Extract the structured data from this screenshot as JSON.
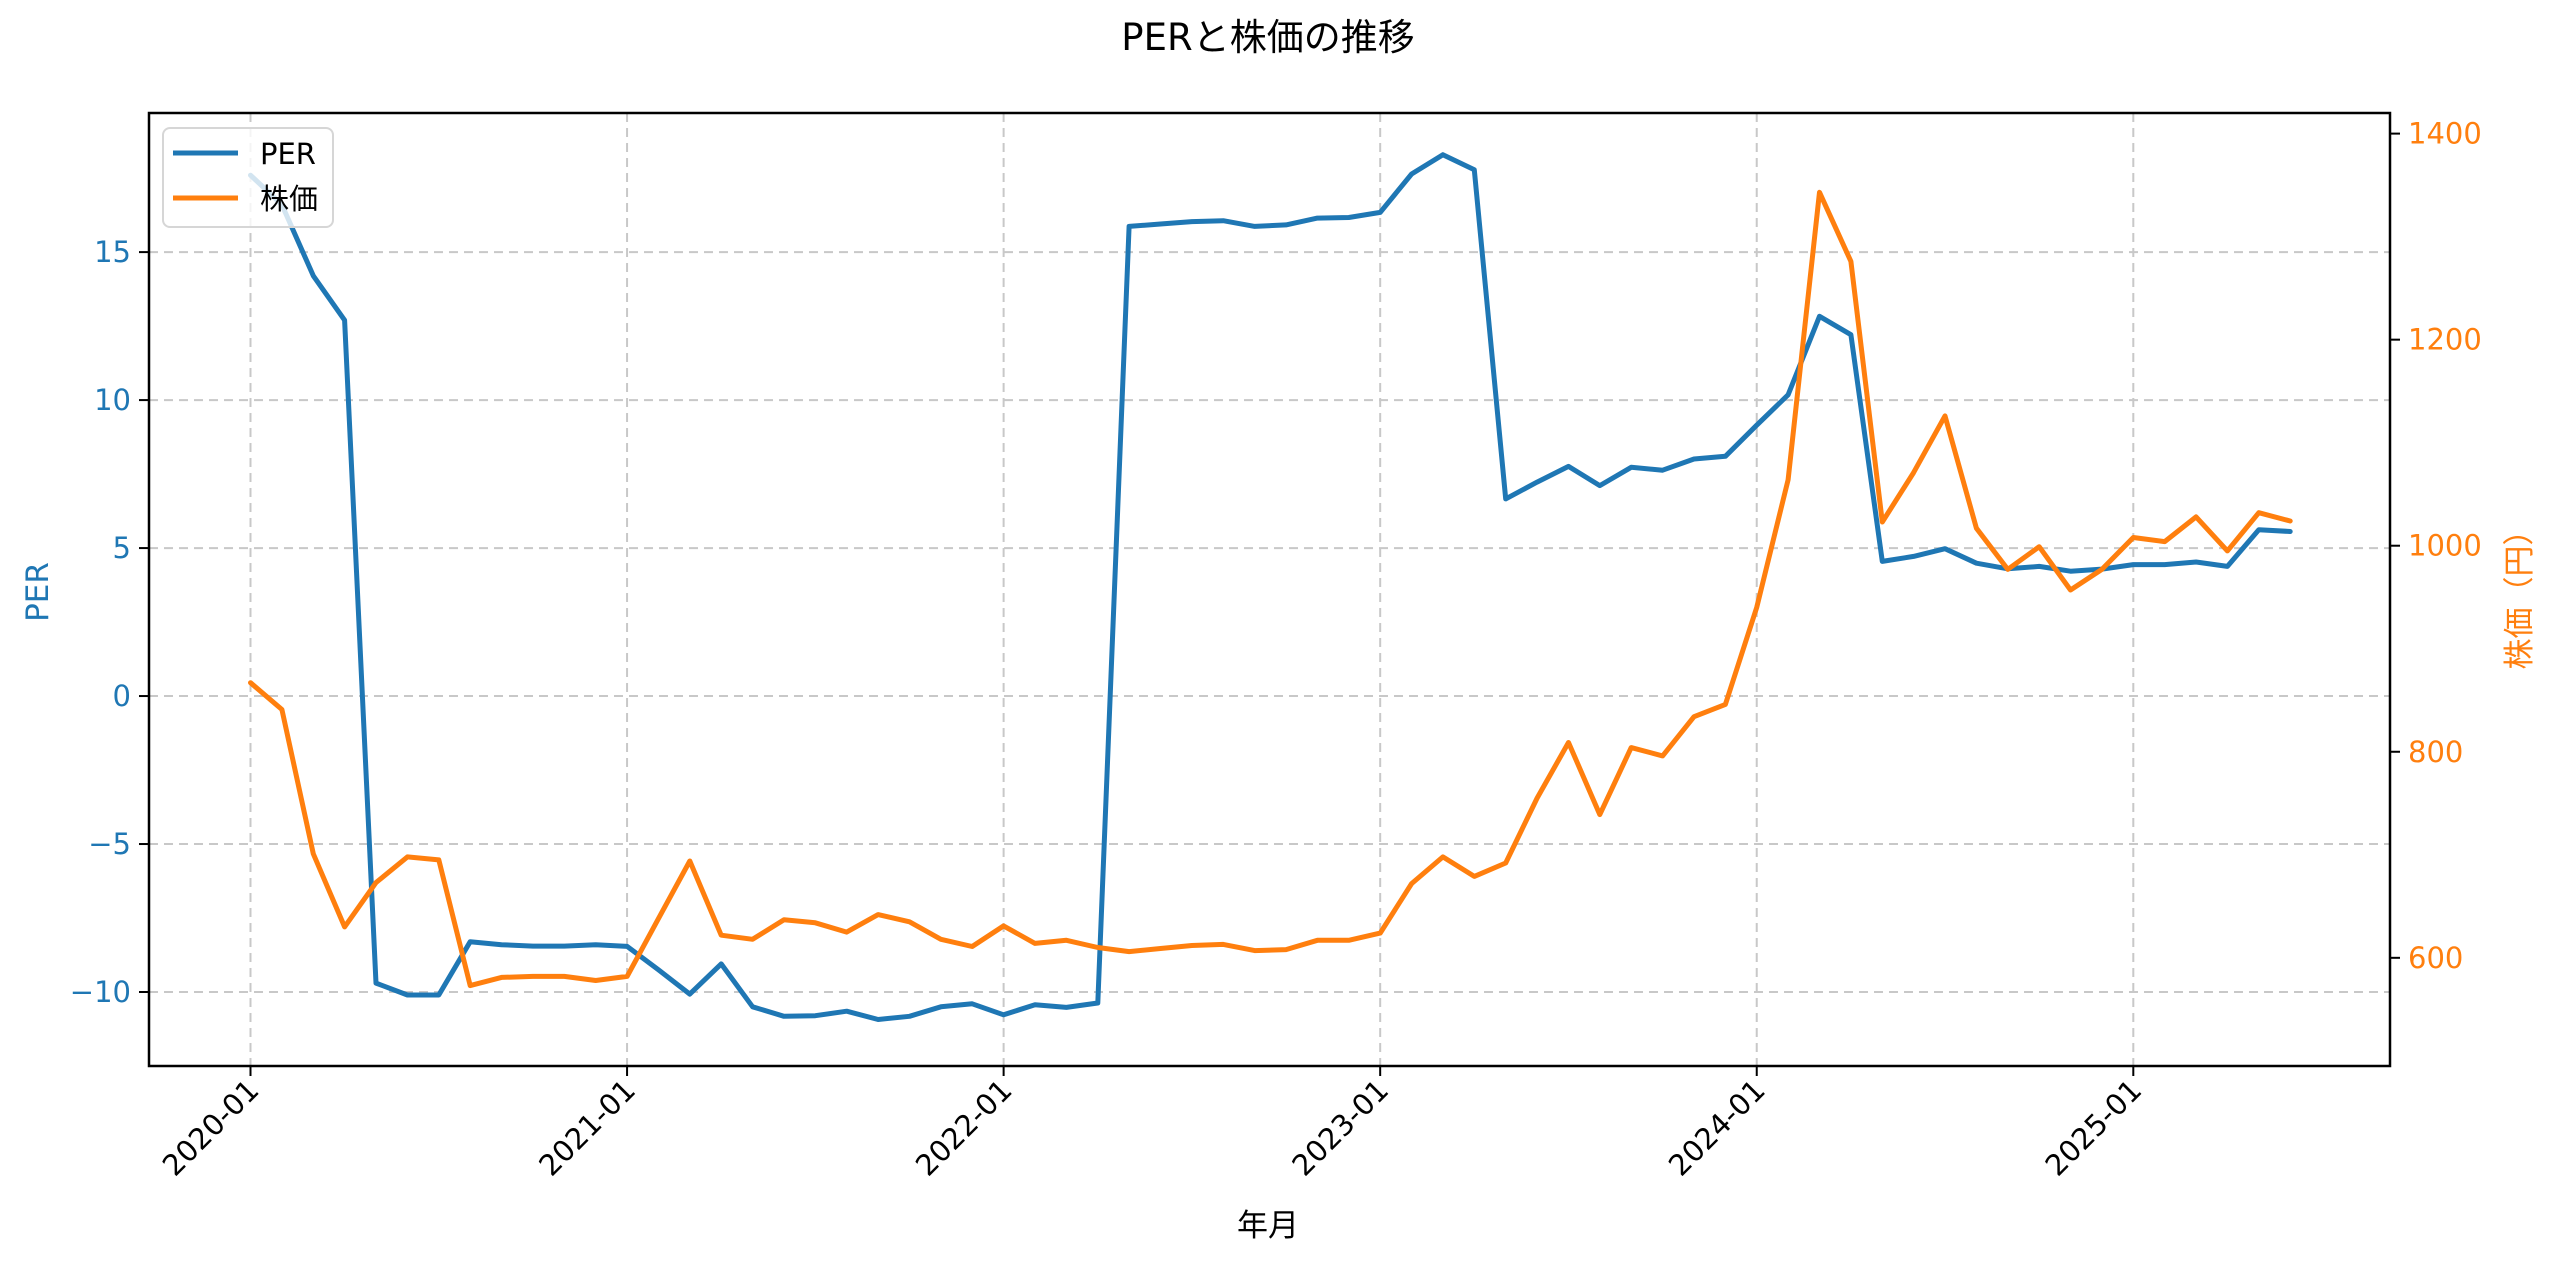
{
  "figure": {
    "title": "PERと株価の推移",
    "xlabel": "年月",
    "ylabel_left": "PER",
    "ylabel_right": "株価（円）",
    "legend": [
      {
        "label": "PER",
        "color": "#1f77b4"
      },
      {
        "label": "株価",
        "color": "#ff7f0e"
      }
    ],
    "colors": {
      "per": "#1f77b4",
      "price": "#ff7f0e",
      "grid": "#c8c8c8",
      "axis": "#000000"
    }
  },
  "chart_data": {
    "type": "line",
    "title": "PERと株価の推移",
    "xlabel": "年月",
    "ylabel": "PER",
    "ylabel_right": "株価（円）",
    "grid": true,
    "legend_position": "upper left",
    "x_tick_labels": [
      "2020-01",
      "2021-01",
      "2022-01",
      "2023-01",
      "2024-01",
      "2025-01"
    ],
    "y_left_ticks": [
      -10,
      -5,
      0,
      5,
      10,
      15
    ],
    "y_right_ticks": [
      600,
      800,
      1000,
      1200,
      1400
    ],
    "ylim_left": [
      -12.5,
      19.7
    ],
    "ylim_right": [
      495,
      1420
    ],
    "x": [
      "2020-01",
      "2020-02",
      "2020-03",
      "2020-04",
      "2020-05",
      "2020-06",
      "2020-07",
      "2020-08",
      "2020-09",
      "2020-10",
      "2020-11",
      "2020-12",
      "2021-01",
      "2021-02",
      "2021-03",
      "2021-04",
      "2021-05",
      "2021-06",
      "2021-07",
      "2021-08",
      "2021-09",
      "2021-10",
      "2021-11",
      "2021-12",
      "2022-01",
      "2022-02",
      "2022-03",
      "2022-04",
      "2022-05",
      "2022-06",
      "2022-07",
      "2022-08",
      "2022-09",
      "2022-10",
      "2022-11",
      "2022-12",
      "2023-01",
      "2023-02",
      "2023-03",
      "2023-04",
      "2023-05",
      "2023-06",
      "2023-07",
      "2023-08",
      "2023-09",
      "2023-10",
      "2023-11",
      "2023-12",
      "2024-01",
      "2024-02",
      "2024-03",
      "2024-04",
      "2024-05",
      "2024-06",
      "2024-07",
      "2024-08",
      "2024-09",
      "2024-10",
      "2024-11",
      "2024-12",
      "2025-01",
      "2025-02",
      "2025-03",
      "2025-04",
      "2025-05",
      "2025-06"
    ],
    "series": [
      {
        "name": "PER",
        "axis": "left",
        "color": "#1f77b4",
        "values": [
          17.6,
          16.6,
          14.2,
          12.7,
          -9.7,
          -10.1,
          -10.1,
          -8.3,
          -8.4,
          -8.45,
          -8.45,
          -8.4,
          -8.46,
          -9.25,
          -10.07,
          -9.05,
          -10.5,
          -10.82,
          -10.8,
          -10.65,
          -10.93,
          -10.82,
          -10.5,
          -10.4,
          -10.77,
          -10.43,
          -10.52,
          -10.37,
          15.87,
          15.95,
          16.03,
          16.06,
          15.87,
          15.92,
          16.15,
          16.17,
          16.34,
          17.64,
          18.29,
          17.78,
          6.66,
          7.23,
          7.76,
          7.11,
          7.73,
          7.63,
          8.01,
          8.1,
          9.15,
          10.18,
          12.83,
          12.21,
          4.55,
          4.72,
          4.98,
          4.49,
          4.3,
          4.38,
          4.22,
          4.29,
          4.44,
          4.44,
          4.53,
          4.38,
          5.62,
          5.56
        ]
      },
      {
        "name": "株価",
        "axis": "right",
        "color": "#ff7f0e",
        "values": [
          867,
          841,
          701,
          630,
          673,
          698,
          695,
          573,
          581,
          582,
          582,
          578,
          582,
          638,
          694,
          622,
          618,
          637,
          634,
          625,
          642,
          635,
          618,
          611,
          631,
          614,
          617,
          610,
          606,
          609,
          612,
          613,
          607,
          608,
          617,
          617,
          624,
          672,
          698,
          679,
          692,
          755,
          809,
          739,
          804,
          796,
          834,
          846,
          940,
          1064,
          1343,
          1276,
          1023,
          1071,
          1126,
          1017,
          977,
          999,
          957,
          977,
          1008,
          1004,
          1028,
          995,
          1032,
          1024
        ]
      }
    ]
  }
}
